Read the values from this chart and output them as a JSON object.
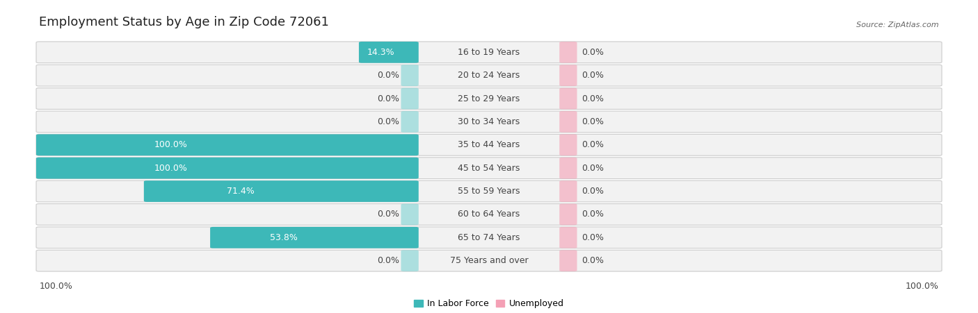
{
  "title": "Employment Status by Age in Zip Code 72061",
  "source": "Source: ZipAtlas.com",
  "categories": [
    "16 to 19 Years",
    "20 to 24 Years",
    "25 to 29 Years",
    "30 to 34 Years",
    "35 to 44 Years",
    "45 to 54 Years",
    "55 to 59 Years",
    "60 to 64 Years",
    "65 to 74 Years",
    "75 Years and over"
  ],
  "in_labor_force": [
    14.3,
    0.0,
    0.0,
    0.0,
    100.0,
    100.0,
    71.4,
    0.0,
    53.8,
    0.0
  ],
  "unemployed": [
    0.0,
    0.0,
    0.0,
    0.0,
    0.0,
    0.0,
    0.0,
    0.0,
    0.0,
    0.0
  ],
  "labor_color": "#3db8b8",
  "labor_color_light": "#8fd8d8",
  "unemployed_color": "#f4a0b5",
  "label_color": "#444444",
  "white_text": "#ffffff",
  "axis_label_left": "100.0%",
  "axis_label_right": "100.0%",
  "max_value": 100.0,
  "title_fontsize": 13,
  "label_fontsize": 9,
  "tick_fontsize": 9,
  "legend_fontsize": 9
}
